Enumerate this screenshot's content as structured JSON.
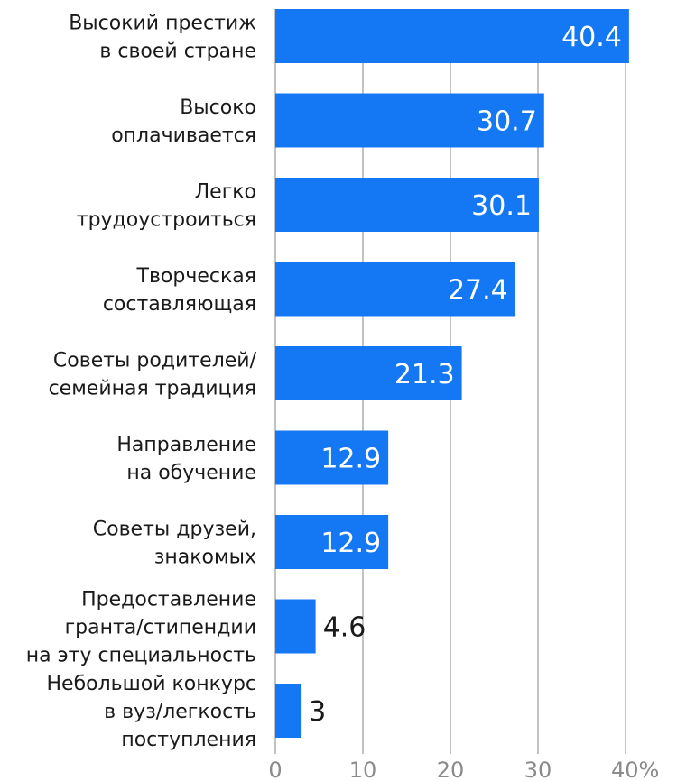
{
  "chart_data": {
    "type": "bar",
    "orientation": "horizontal",
    "categories": [
      [
        "Высокий престиж",
        "в своей стране"
      ],
      [
        "Высоко",
        "оплачивается"
      ],
      [
        "Легко",
        "трудоустроиться"
      ],
      [
        "Творческая",
        "составляющая"
      ],
      [
        "Советы родителей/",
        "семейная традиция"
      ],
      [
        "Направление",
        "на обучение"
      ],
      [
        "Советы друзей,",
        "знакомых"
      ],
      [
        "Предоставление",
        "гранта/стипендии",
        "на эту специальность"
      ],
      [
        "Небольшой конкурс",
        "в вуз/легкость",
        "поступления"
      ]
    ],
    "values": [
      40.4,
      30.7,
      30.1,
      27.4,
      21.3,
      12.9,
      12.9,
      4.6,
      3
    ],
    "value_labels": [
      "40.4",
      "30.7",
      "30.1",
      "27.4",
      "21.3",
      "12.9",
      "12.9",
      "4.6",
      "3"
    ],
    "xlim": [
      0,
      40
    ],
    "x_ticks": [
      0,
      10,
      20,
      30,
      40
    ],
    "x_tick_labels": [
      "0",
      "10",
      "20",
      "30",
      "40%"
    ],
    "grid": true,
    "bar_color": "#1478f5",
    "label_inside_color": "#ffffff",
    "label_outside_color": "#1a1a1a"
  }
}
